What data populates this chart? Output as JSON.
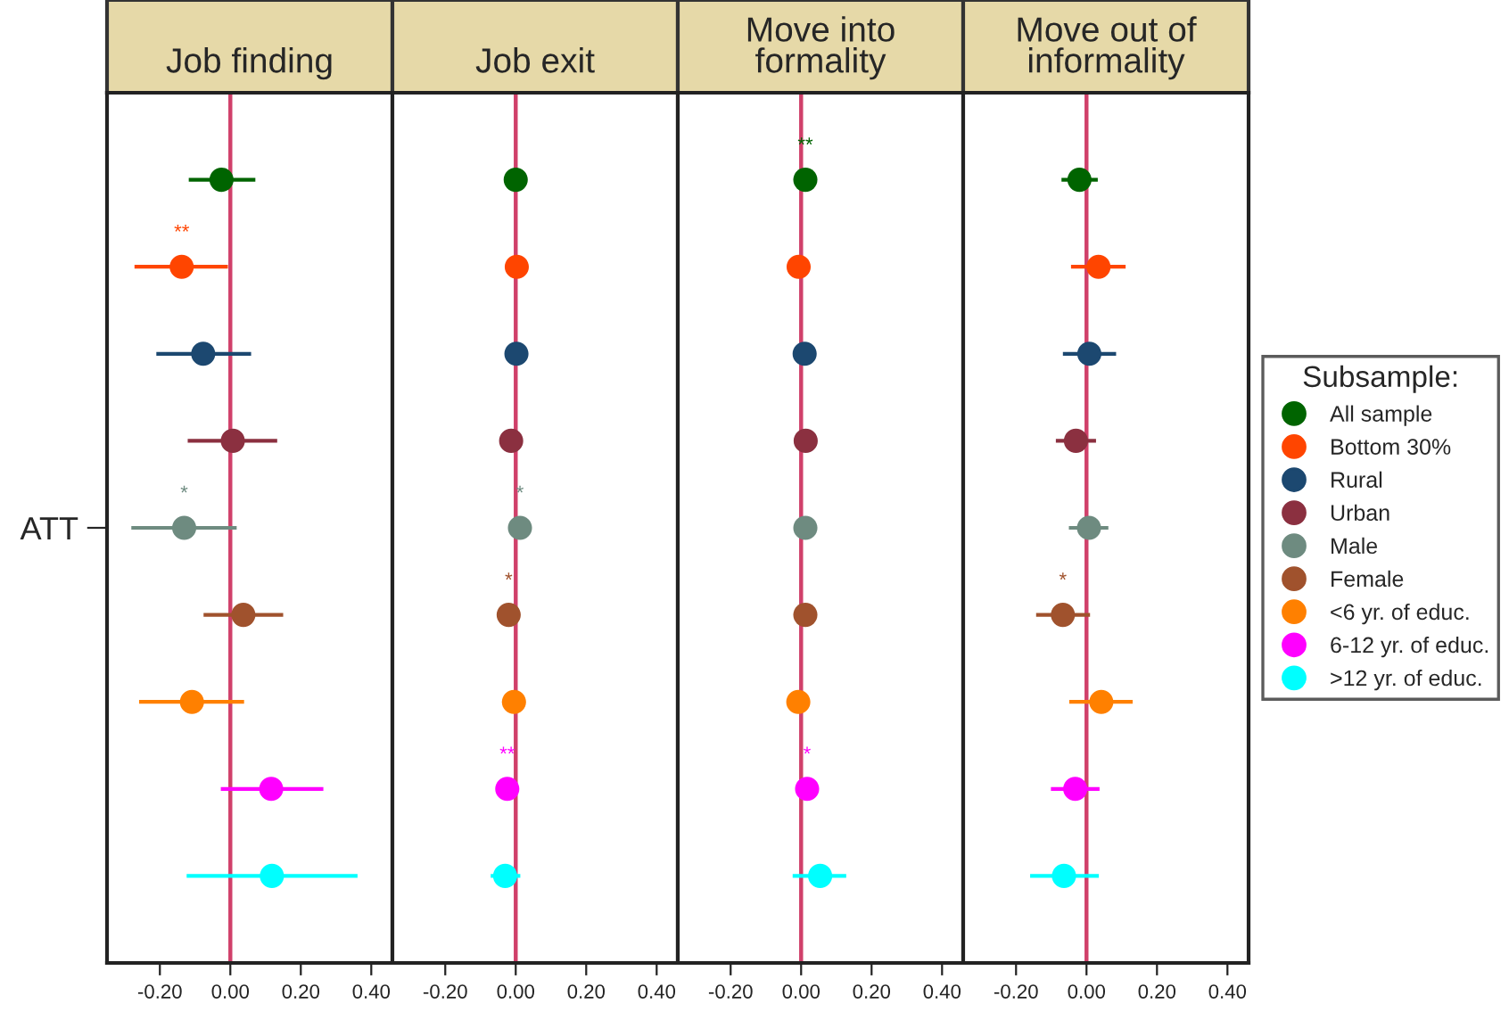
{
  "chart_data": [
    {
      "type": "scatter",
      "orientation": "horizontal",
      "title": "Job finding",
      "categories": [
        null,
        null,
        null,
        null,
        "ATT",
        null,
        null,
        null,
        null
      ],
      "xlim": [
        -0.35,
        0.46
      ],
      "xticks": [
        {
          "value": -0.2,
          "label": "-0.20"
        },
        {
          "value": 0,
          "label": "0.00"
        },
        {
          "value": 0.2,
          "label": "0.20"
        },
        {
          "value": 0.4,
          "label": "0.40"
        }
      ],
      "marker": "circle",
      "ref_lines": [
        {
          "axis": "x",
          "value": 0,
          "color": "#d0406a"
        }
      ],
      "series": [
        {
          "color": "#006400",
          "values": [
            -0.025,
            null,
            null,
            null,
            null,
            null,
            null,
            null,
            null
          ],
          "errors": [
            [
              -0.118,
              0.071
            ],
            null,
            null,
            null,
            null,
            null,
            null,
            null,
            null
          ]
        },
        {
          "color": "#ff4500",
          "values": [
            null,
            -0.138,
            null,
            null,
            null,
            null,
            null,
            null,
            null
          ],
          "errors": [
            null,
            [
              -0.272,
              -0.007
            ],
            null,
            null,
            null,
            null,
            null,
            null,
            null
          ],
          "value_labels": [
            null,
            "**",
            null,
            null,
            null,
            null,
            null,
            null,
            null
          ]
        },
        {
          "color": "#1c4870",
          "values": [
            null,
            null,
            -0.077,
            null,
            null,
            null,
            null,
            null,
            null
          ],
          "errors": [
            null,
            null,
            [
              -0.21,
              0.059
            ],
            null,
            null,
            null,
            null,
            null,
            null
          ]
        },
        {
          "color": "#8b3040",
          "values": [
            null,
            null,
            null,
            0.007,
            null,
            null,
            null,
            null,
            null
          ],
          "errors": [
            null,
            null,
            null,
            [
              -0.121,
              0.133
            ],
            null,
            null,
            null,
            null,
            null
          ]
        },
        {
          "color": "#6e8b80",
          "values": [
            null,
            null,
            null,
            null,
            -0.131,
            null,
            null,
            null,
            null
          ],
          "errors": [
            null,
            null,
            null,
            null,
            [
              -0.281,
              0.018
            ],
            null,
            null,
            null,
            null
          ],
          "value_labels": [
            null,
            null,
            null,
            null,
            "*",
            null,
            null,
            null,
            null
          ]
        },
        {
          "color": "#a0522d",
          "values": [
            null,
            null,
            null,
            null,
            null,
            0.037,
            null,
            null,
            null
          ],
          "errors": [
            null,
            null,
            null,
            null,
            null,
            [
              -0.076,
              0.15
            ],
            null,
            null,
            null
          ]
        },
        {
          "color": "#ff8000",
          "values": [
            null,
            null,
            null,
            null,
            null,
            null,
            -0.109,
            null,
            null
          ],
          "errors": [
            null,
            null,
            null,
            null,
            null,
            null,
            [
              -0.259,
              0.039
            ],
            null,
            null
          ]
        },
        {
          "color": "#ff00ff",
          "values": [
            null,
            null,
            null,
            null,
            null,
            null,
            null,
            0.116,
            null
          ],
          "errors": [
            null,
            null,
            null,
            null,
            null,
            null,
            null,
            [
              -0.027,
              0.264
            ],
            null
          ]
        },
        {
          "color": "#00ffff",
          "values": [
            null,
            null,
            null,
            null,
            null,
            null,
            null,
            null,
            0.118
          ],
          "errors": [
            null,
            null,
            null,
            null,
            null,
            null,
            null,
            null,
            [
              -0.124,
              0.361
            ]
          ]
        }
      ]
    },
    {
      "type": "scatter",
      "orientation": "horizontal",
      "title": "Job exit",
      "categories": [
        null,
        null,
        null,
        null,
        null,
        null,
        null,
        null,
        null
      ],
      "xlim": [
        -0.35,
        0.46
      ],
      "xticks": [
        {
          "value": -0.2,
          "label": "-0.20"
        },
        {
          "value": 0,
          "label": "0.00"
        },
        {
          "value": 0.2,
          "label": "0.20"
        },
        {
          "value": 0.4,
          "label": "0.40"
        }
      ],
      "marker": "circle",
      "ref_lines": [
        {
          "axis": "x",
          "value": 0,
          "color": "#d0406a"
        }
      ],
      "series": [
        {
          "color": "#006400",
          "values": [
            0.0,
            null,
            null,
            null,
            null,
            null,
            null,
            null,
            null
          ]
        },
        {
          "color": "#ff4500",
          "values": [
            null,
            0.003,
            null,
            null,
            null,
            null,
            null,
            null,
            null
          ]
        },
        {
          "color": "#1c4870",
          "values": [
            null,
            null,
            0.002,
            null,
            null,
            null,
            null,
            null,
            null
          ]
        },
        {
          "color": "#8b3040",
          "values": [
            null,
            null,
            null,
            -0.013,
            null,
            null,
            null,
            null,
            null
          ]
        },
        {
          "color": "#6e8b80",
          "values": [
            null,
            null,
            null,
            null,
            0.012,
            null,
            null,
            null,
            null
          ],
          "value_labels": [
            null,
            null,
            null,
            null,
            "*",
            null,
            null,
            null,
            null
          ]
        },
        {
          "color": "#a0522d",
          "values": [
            null,
            null,
            null,
            null,
            null,
            -0.02,
            null,
            null,
            null
          ],
          "value_labels": [
            null,
            null,
            null,
            null,
            null,
            "*",
            null,
            null,
            null
          ]
        },
        {
          "color": "#ff8000",
          "values": [
            null,
            null,
            null,
            null,
            null,
            null,
            -0.005,
            null,
            null
          ]
        },
        {
          "color": "#ff00ff",
          "values": [
            null,
            null,
            null,
            null,
            null,
            null,
            null,
            -0.024,
            null
          ],
          "value_labels": [
            null,
            null,
            null,
            null,
            null,
            null,
            null,
            "**",
            null
          ]
        },
        {
          "color": "#00ffff",
          "values": [
            null,
            null,
            null,
            null,
            null,
            null,
            null,
            null,
            -0.03
          ],
          "errors": [
            null,
            null,
            null,
            null,
            null,
            null,
            null,
            null,
            [
              -0.071,
              0.013
            ]
          ]
        }
      ]
    },
    {
      "type": "scatter",
      "orientation": "horizontal",
      "title": "Move into\nformality",
      "categories": [
        null,
        null,
        null,
        null,
        null,
        null,
        null,
        null,
        null
      ],
      "xlim": [
        -0.35,
        0.46
      ],
      "xticks": [
        {
          "value": -0.2,
          "label": "-0.20"
        },
        {
          "value": 0,
          "label": "0.00"
        },
        {
          "value": 0.2,
          "label": "0.20"
        },
        {
          "value": 0.4,
          "label": "0.40"
        }
      ],
      "marker": "circle",
      "ref_lines": [
        {
          "axis": "x",
          "value": 0,
          "color": "#d0406a"
        }
      ],
      "series": [
        {
          "color": "#006400",
          "values": [
            0.012,
            null,
            null,
            null,
            null,
            null,
            null,
            null,
            null
          ],
          "value_labels": [
            "**",
            null,
            null,
            null,
            null,
            null,
            null,
            null,
            null
          ]
        },
        {
          "color": "#ff4500",
          "values": [
            null,
            -0.007,
            null,
            null,
            null,
            null,
            null,
            null,
            null
          ]
        },
        {
          "color": "#1c4870",
          "values": [
            null,
            null,
            0.01,
            null,
            null,
            null,
            null,
            null,
            null
          ]
        },
        {
          "color": "#8b3040",
          "values": [
            null,
            null,
            null,
            0.013,
            null,
            null,
            null,
            null,
            null
          ]
        },
        {
          "color": "#6e8b80",
          "values": [
            null,
            null,
            null,
            null,
            0.012,
            null,
            null,
            null,
            null
          ]
        },
        {
          "color": "#a0522d",
          "values": [
            null,
            null,
            null,
            null,
            null,
            0.012,
            null,
            null,
            null
          ]
        },
        {
          "color": "#ff8000",
          "values": [
            null,
            null,
            null,
            null,
            null,
            null,
            -0.008,
            null,
            null
          ]
        },
        {
          "color": "#ff00ff",
          "values": [
            null,
            null,
            null,
            null,
            null,
            null,
            null,
            0.017,
            null
          ],
          "value_labels": [
            null,
            null,
            null,
            null,
            null,
            null,
            null,
            "*",
            null
          ]
        },
        {
          "color": "#00ffff",
          "values": [
            null,
            null,
            null,
            null,
            null,
            null,
            null,
            null,
            0.054
          ],
          "errors": [
            null,
            null,
            null,
            null,
            null,
            null,
            null,
            null,
            [
              -0.024,
              0.128
            ]
          ]
        }
      ]
    },
    {
      "type": "scatter",
      "orientation": "horizontal",
      "title": "Move out of\ninformality",
      "categories": [
        null,
        null,
        null,
        null,
        null,
        null,
        null,
        null,
        null
      ],
      "xlim": [
        -0.35,
        0.46
      ],
      "xticks": [
        {
          "value": -0.2,
          "label": "-0.20"
        },
        {
          "value": 0,
          "label": "0.00"
        },
        {
          "value": 0.2,
          "label": "0.20"
        },
        {
          "value": 0.4,
          "label": "0.40"
        }
      ],
      "marker": "circle",
      "ref_lines": [
        {
          "axis": "x",
          "value": 0,
          "color": "#d0406a"
        }
      ],
      "legend": "right",
      "legend_title": "Subsample:",
      "series": [
        {
          "name": "All sample",
          "color": "#006400",
          "values": [
            -0.02,
            null,
            null,
            null,
            null,
            null,
            null,
            null,
            null
          ],
          "errors": [
            [
              -0.071,
              0.032
            ],
            null,
            null,
            null,
            null,
            null,
            null,
            null,
            null
          ]
        },
        {
          "name": "Bottom 30%",
          "color": "#ff4500",
          "values": [
            null,
            0.034,
            null,
            null,
            null,
            null,
            null,
            null,
            null
          ],
          "errors": [
            null,
            [
              -0.044,
              0.111
            ],
            null,
            null,
            null,
            null,
            null,
            null,
            null
          ]
        },
        {
          "name": "Rural",
          "color": "#1c4870",
          "values": [
            null,
            null,
            0.008,
            null,
            null,
            null,
            null,
            null,
            null
          ],
          "errors": [
            null,
            null,
            [
              -0.067,
              0.084
            ],
            null,
            null,
            null,
            null,
            null,
            null
          ]
        },
        {
          "name": "Urban",
          "color": "#8b3040",
          "values": [
            null,
            null,
            null,
            -0.03,
            null,
            null,
            null,
            null,
            null
          ],
          "errors": [
            null,
            null,
            null,
            [
              -0.087,
              0.027
            ],
            null,
            null,
            null,
            null,
            null
          ]
        },
        {
          "name": "Male",
          "color": "#6e8b80",
          "values": [
            null,
            null,
            null,
            null,
            0.007,
            null,
            null,
            null,
            null
          ],
          "errors": [
            null,
            null,
            null,
            null,
            [
              -0.05,
              0.062
            ],
            null,
            null,
            null,
            null
          ]
        },
        {
          "name": "Female",
          "color": "#a0522d",
          "values": [
            null,
            null,
            null,
            null,
            null,
            -0.067,
            null,
            null,
            null
          ],
          "errors": [
            null,
            null,
            null,
            null,
            null,
            [
              -0.143,
              0.01
            ],
            null,
            null,
            null
          ],
          "value_labels": [
            null,
            null,
            null,
            null,
            null,
            "*",
            null,
            null,
            null
          ]
        },
        {
          "name": "<6 yr. of educ.",
          "color": "#ff8000",
          "values": [
            null,
            null,
            null,
            null,
            null,
            null,
            0.042,
            null,
            null
          ],
          "errors": [
            null,
            null,
            null,
            null,
            null,
            null,
            [
              -0.049,
              0.131
            ],
            null,
            null
          ]
        },
        {
          "name": "6-12 yr. of educ.",
          "color": "#ff00ff",
          "values": [
            null,
            null,
            null,
            null,
            null,
            null,
            null,
            -0.032,
            null
          ],
          "errors": [
            null,
            null,
            null,
            null,
            null,
            null,
            null,
            [
              -0.101,
              0.037
            ],
            null
          ]
        },
        {
          "name": ">12 yr. of educ.",
          "color": "#00ffff",
          "values": [
            null,
            null,
            null,
            null,
            null,
            null,
            null,
            null,
            -0.064
          ],
          "errors": [
            null,
            null,
            null,
            null,
            null,
            null,
            null,
            null,
            [
              -0.16,
              0.035
            ]
          ]
        }
      ]
    }
  ]
}
